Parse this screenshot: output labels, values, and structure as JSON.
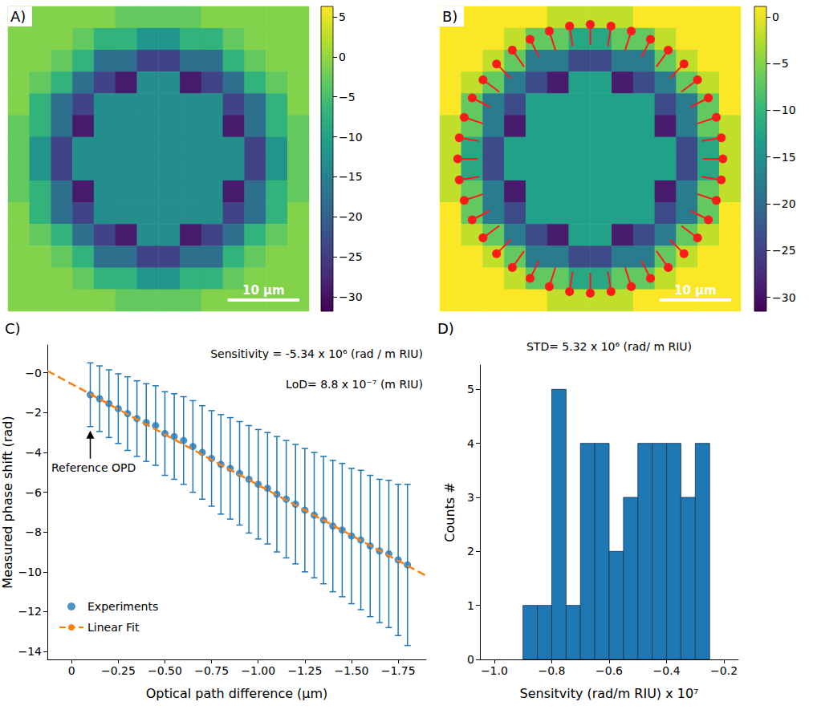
{
  "chart_data": [
    {
      "type": "heatmap",
      "panel_label": "A)",
      "tick_labels": false,
      "xlim": [
        0,
        42
      ],
      "ylim": [
        0,
        42
      ],
      "cells": [
        [
          -1,
          -1,
          -1,
          -1,
          -1,
          -3,
          -3,
          -3,
          -3,
          -1,
          -1,
          -1,
          -1,
          -1
        ],
        [
          -1,
          -1,
          -1,
          -3,
          -7,
          -7,
          -12,
          -12,
          -7,
          -7,
          -3,
          -1,
          -1,
          -1
        ],
        [
          -1,
          -1,
          -3,
          -7,
          -18,
          -18,
          -24,
          -24,
          -18,
          -18,
          -7,
          -3,
          -1,
          -1
        ],
        [
          -1,
          -3,
          -7,
          -18,
          -24,
          -29,
          -13,
          -13,
          -29,
          -24,
          -18,
          -7,
          -3,
          -1
        ],
        [
          -1,
          -7,
          -18,
          -24,
          -13,
          -13,
          -13,
          -13,
          -13,
          -13,
          -24,
          -18,
          -7,
          -1
        ],
        [
          -3,
          -7,
          -18,
          -29,
          -13,
          -13,
          -13,
          -13,
          -13,
          -13,
          -29,
          -18,
          -7,
          -3
        ],
        [
          -3,
          -12,
          -24,
          -13,
          -13,
          -13,
          -13,
          -13,
          -13,
          -13,
          -13,
          -24,
          -12,
          -3
        ],
        [
          -3,
          -12,
          -24,
          -13,
          -13,
          -13,
          -13,
          -13,
          -13,
          -13,
          -13,
          -24,
          -12,
          -3
        ],
        [
          -3,
          -7,
          -18,
          -29,
          -13,
          -13,
          -13,
          -13,
          -13,
          -13,
          -29,
          -18,
          -7,
          -3
        ],
        [
          -1,
          -7,
          -18,
          -24,
          -13,
          -13,
          -13,
          -13,
          -13,
          -13,
          -24,
          -18,
          -7,
          -1
        ],
        [
          -1,
          -3,
          -7,
          -18,
          -24,
          -29,
          -13,
          -13,
          -29,
          -24,
          -18,
          -7,
          -3,
          -1
        ],
        [
          -1,
          -1,
          -3,
          -7,
          -18,
          -18,
          -24,
          -24,
          -18,
          -18,
          -7,
          -3,
          -1,
          -1
        ],
        [
          -1,
          -1,
          -1,
          -3,
          -7,
          -7,
          -12,
          -12,
          -7,
          -7,
          -3,
          -1,
          -1,
          -1
        ],
        [
          -1,
          -1,
          -1,
          -1,
          -1,
          -3,
          -3,
          -3,
          -3,
          -1,
          -1,
          -1,
          -1,
          -1
        ]
      ],
      "colorbar": {
        "range": [
          -31.8,
          6.3
        ],
        "ticks": [
          5,
          0,
          {
            "value": -5,
            "label": "−5"
          },
          {
            "value": -10,
            "label": "−10"
          },
          {
            "value": -15,
            "label": "−15"
          },
          {
            "value": -20,
            "label": "−20"
          },
          {
            "value": -25,
            "label": "−25"
          },
          {
            "value": -30,
            "label": "−30"
          }
        ]
      },
      "scale_bar": {
        "length": 10,
        "label": "10 µm"
      }
    },
    {
      "type": "heatmap",
      "panel_label": "B)",
      "tick_labels": false,
      "xlim": [
        0,
        42
      ],
      "ylim": [
        0,
        42
      ],
      "cells": [
        [
          1,
          1,
          1,
          1,
          1,
          -2,
          -2,
          -2,
          -2,
          1,
          1,
          1,
          1,
          1
        ],
        [
          1,
          1,
          1,
          -2,
          -7,
          -7,
          -12,
          -12,
          -7,
          -7,
          -2,
          1,
          1,
          1
        ],
        [
          1,
          1,
          -2,
          -7,
          -18,
          -18,
          -24,
          -24,
          -18,
          -18,
          -7,
          -2,
          1,
          1
        ],
        [
          1,
          -2,
          -7,
          -18,
          -24,
          -29,
          -13,
          -13,
          -29,
          -24,
          -18,
          -7,
          -2,
          1
        ],
        [
          1,
          -7,
          -18,
          -24,
          -13,
          -13,
          -13,
          -13,
          -13,
          -13,
          -24,
          -18,
          -7,
          1
        ],
        [
          -2,
          -7,
          -18,
          -29,
          -13,
          -13,
          -13,
          -13,
          -13,
          -13,
          -29,
          -18,
          -7,
          -2
        ],
        [
          -2,
          -12,
          -24,
          -13,
          -13,
          -13,
          -13,
          -13,
          -13,
          -13,
          -13,
          -24,
          -12,
          -2
        ],
        [
          -2,
          -12,
          -24,
          -13,
          -13,
          -13,
          -13,
          -13,
          -13,
          -13,
          -13,
          -24,
          -12,
          -2
        ],
        [
          -2,
          -7,
          -18,
          -29,
          -13,
          -13,
          -13,
          -13,
          -13,
          -13,
          -29,
          -18,
          -7,
          -2
        ],
        [
          1,
          -7,
          -18,
          -24,
          -13,
          -13,
          -13,
          -13,
          -13,
          -13,
          -24,
          -18,
          -7,
          1
        ],
        [
          1,
          -2,
          -7,
          -18,
          -24,
          -29,
          -13,
          -13,
          -29,
          -24,
          -18,
          -7,
          -2,
          1
        ],
        [
          1,
          1,
          -2,
          -7,
          -18,
          -18,
          -24,
          -24,
          -18,
          -18,
          -7,
          -2,
          1,
          1
        ],
        [
          1,
          1,
          1,
          -2,
          -7,
          -7,
          -12,
          -12,
          -7,
          -7,
          -2,
          1,
          1,
          1
        ],
        [
          1,
          1,
          1,
          1,
          1,
          -2,
          -2,
          -2,
          -2,
          1,
          1,
          1,
          1,
          1
        ]
      ],
      "colorbar": {
        "range": [
          -31.5,
          1.1
        ],
        "ticks": [
          0,
          {
            "value": -5,
            "label": "−5"
          },
          {
            "value": -10,
            "label": "−10"
          },
          {
            "value": -15,
            "label": "−15"
          },
          {
            "value": -20,
            "label": "−20"
          },
          {
            "value": -25,
            "label": "−25"
          },
          {
            "value": -30,
            "label": "−30"
          }
        ]
      },
      "scale_bar": {
        "length": 10,
        "label": "10 µm"
      },
      "markers": {
        "color": "#ff1a1a",
        "marker": "circle",
        "outer": [
          [
            39.5,
            21
          ],
          [
            39.28,
            23.89
          ],
          [
            38.59,
            26.72
          ],
          [
            37.48,
            29.4
          ],
          [
            35.97,
            31.88
          ],
          [
            34.08,
            34.08
          ],
          [
            31.88,
            35.97
          ],
          [
            29.4,
            37.48
          ],
          [
            26.72,
            38.59
          ],
          [
            23.89,
            39.28
          ],
          [
            21,
            39.5
          ],
          [
            18.11,
            39.28
          ],
          [
            15.28,
            38.59
          ],
          [
            12.6,
            37.48
          ],
          [
            10.12,
            35.97
          ],
          [
            7.92,
            34.08
          ],
          [
            6.03,
            31.88
          ],
          [
            4.52,
            29.4
          ],
          [
            3.41,
            26.72
          ],
          [
            2.72,
            23.89
          ],
          [
            2.5,
            21
          ],
          [
            2.72,
            18.11
          ],
          [
            3.41,
            15.28
          ],
          [
            4.52,
            12.6
          ],
          [
            6.03,
            10.12
          ],
          [
            7.92,
            7.92
          ],
          [
            10.12,
            6.03
          ],
          [
            12.6,
            4.52
          ],
          [
            15.28,
            3.41
          ],
          [
            18.11,
            2.72
          ],
          [
            21,
            2.5
          ],
          [
            23.89,
            2.72
          ],
          [
            26.72,
            3.41
          ],
          [
            29.4,
            4.52
          ],
          [
            31.88,
            6.03
          ],
          [
            34.08,
            7.92
          ],
          [
            35.97,
            10.12
          ],
          [
            37.48,
            12.6
          ],
          [
            38.59,
            15.28
          ],
          [
            39.28,
            18.11
          ]
        ],
        "inner": [
          [
            36.7,
            21
          ],
          [
            36.51,
            23.45
          ],
          [
            35.93,
            25.85
          ],
          [
            34.99,
            28.13
          ],
          [
            33.7,
            30.23
          ],
          [
            32.1,
            32.1
          ],
          [
            30.23,
            33.7
          ],
          [
            28.13,
            34.99
          ],
          [
            25.85,
            35.93
          ],
          [
            23.45,
            36.51
          ],
          [
            21,
            36.7
          ],
          [
            18.55,
            36.51
          ],
          [
            16.15,
            35.93
          ],
          [
            13.87,
            34.99
          ],
          [
            11.77,
            33.7
          ],
          [
            9.9,
            32.1
          ],
          [
            8.3,
            30.23
          ],
          [
            7.01,
            28.13
          ],
          [
            6.07,
            25.85
          ],
          [
            5.49,
            23.45
          ],
          [
            5.3,
            21
          ],
          [
            5.49,
            18.55
          ],
          [
            6.07,
            16.15
          ],
          [
            7.01,
            13.87
          ],
          [
            8.3,
            11.77
          ],
          [
            9.9,
            9.9
          ],
          [
            11.77,
            8.3
          ],
          [
            13.87,
            7.01
          ],
          [
            16.15,
            6.07
          ],
          [
            18.55,
            5.49
          ],
          [
            21,
            5.3
          ],
          [
            23.45,
            5.49
          ],
          [
            25.85,
            6.07
          ],
          [
            28.13,
            7.01
          ],
          [
            30.23,
            8.3
          ],
          [
            32.1,
            9.9
          ],
          [
            33.7,
            11.77
          ],
          [
            34.99,
            13.87
          ],
          [
            35.93,
            16.15
          ],
          [
            36.51,
            18.55
          ]
        ]
      }
    },
    {
      "type": "scatter",
      "panel_label": "C)",
      "x_label": "Optical path difference (µm)",
      "y_label": "Measured phase shift (rad)",
      "x": [
        -0.1,
        -0.15,
        -0.2,
        -0.25,
        -0.3,
        -0.35,
        -0.4,
        -0.45,
        -0.5,
        -0.55,
        -0.6,
        -0.65,
        -0.7,
        -0.75,
        -0.8,
        -0.85,
        -0.9,
        -0.95,
        -1.0,
        -1.05,
        -1.1,
        -1.15,
        -1.2,
        -1.25,
        -1.3,
        -1.35,
        -1.4,
        -1.45,
        -1.5,
        -1.55,
        -1.6,
        -1.65,
        -1.7,
        -1.75,
        -1.8
      ],
      "series": [
        {
          "name": "Experiments",
          "type": "scatter",
          "color": "#1f77b4",
          "marker": "circle",
          "values": [
            -1.1,
            -1.3,
            -1.55,
            -1.8,
            -2.05,
            -2.3,
            -2.5,
            -2.65,
            -3.05,
            -3.2,
            -3.4,
            -3.7,
            -4.0,
            -4.3,
            -4.6,
            -4.8,
            -5.05,
            -5.35,
            -5.6,
            -5.8,
            -6.1,
            -6.35,
            -6.6,
            -6.9,
            -7.15,
            -7.4,
            -7.7,
            -7.9,
            -8.2,
            -8.4,
            -8.7,
            -8.95,
            -9.1,
            -9.4,
            -9.65
          ],
          "errors": [
            1.6,
            1.65,
            1.7,
            1.75,
            1.85,
            1.9,
            1.95,
            2.0,
            2.1,
            2.15,
            2.2,
            2.3,
            2.35,
            2.4,
            2.5,
            2.55,
            2.6,
            2.7,
            2.75,
            2.8,
            2.9,
            2.95,
            3.0,
            3.1,
            3.15,
            3.2,
            3.3,
            3.35,
            3.4,
            3.5,
            3.55,
            3.6,
            3.7,
            3.8,
            4.05
          ]
        },
        {
          "name": "Linear Fit",
          "type": "line",
          "color": "#ff7f0e",
          "line_style": "dashed",
          "x": [
            0.13,
            -1.9
          ],
          "values": [
            0.1,
            -10.2
          ]
        }
      ],
      "xlim": [
        0.13,
        -1.9
      ],
      "xticks": [
        0,
        {
          "value": -0.25,
          "label": "−0.25"
        },
        {
          "value": -0.5,
          "label": "−0.50"
        },
        {
          "value": -0.75,
          "label": "−0.75"
        },
        {
          "value": -1.0,
          "label": "−1.00"
        },
        {
          "value": -1.25,
          "label": "−1.25"
        },
        {
          "value": -1.5,
          "label": "−1.50"
        },
        {
          "value": -1.75,
          "label": "−1.75"
        }
      ],
      "ylim": [
        -14.4,
        1.4
      ],
      "yticks": [
        {
          "value": 0,
          "label": "−0"
        },
        {
          "value": -2,
          "label": "−2"
        },
        {
          "value": -4,
          "label": "−4"
        },
        {
          "value": -6,
          "label": "−6"
        },
        {
          "value": -8,
          "label": "−8"
        },
        {
          "value": -10,
          "label": "−10"
        },
        {
          "value": -12,
          "label": "−12"
        },
        {
          "value": -14,
          "label": "−14"
        }
      ],
      "legend": "lower left",
      "stats": [
        "Sensitivity = -5.34 x 10⁶ (rad / m RIU)",
        "LoD= 8.8 x 10⁻⁷ (m RIU)"
      ],
      "reference_label": "Reference OPD"
    },
    {
      "type": "histogram",
      "panel_label": "D)",
      "x_label": "Sensitvity (rad/m RIU) x 10⁷",
      "y_label": "Counts #",
      "bins": [
        -0.9,
        -0.85,
        -0.8,
        -0.75,
        -0.7,
        -0.65,
        -0.6,
        -0.55,
        -0.5,
        -0.45,
        -0.4,
        -0.35,
        -0.3,
        -0.25
      ],
      "values": [
        1,
        1,
        5,
        1,
        4,
        4,
        2,
        3,
        4,
        4,
        4,
        3,
        4
      ],
      "color": "#1f77b4",
      "xlim": [
        -1.05,
        -0.15
      ],
      "xticks": [
        {
          "value": -1.0,
          "label": "−1.0"
        },
        {
          "value": -0.8,
          "label": "−0.8"
        },
        {
          "value": -0.6,
          "label": "−0.6"
        },
        {
          "value": -0.4,
          "label": "−0.4"
        },
        {
          "value": -0.2,
          "label": "−0.2"
        }
      ],
      "ylim": [
        0,
        5.45
      ],
      "yticks": [
        0,
        1,
        2,
        3,
        4,
        5
      ],
      "stats": [
        "STD= 5.32 x 10⁶ (rad/ m RIU)"
      ]
    }
  ]
}
